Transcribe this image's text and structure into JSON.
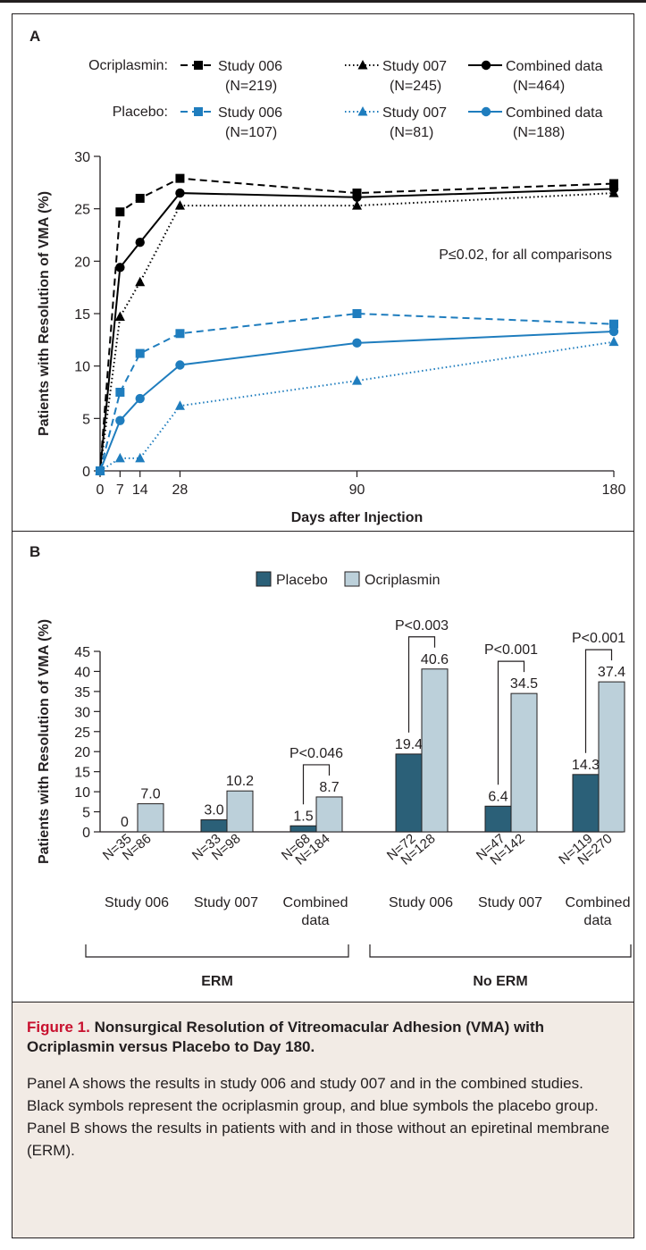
{
  "panel_a": {
    "label": "A",
    "legend_group_ocriplasmin": "Ocriplasmin:",
    "legend_group_placebo": "Placebo:",
    "stat_note": "P≤0.02, for all comparisons",
    "colors": {
      "ocriplasmin": "#000000",
      "placebo": "#1f7dbe"
    }
  },
  "panel_b": {
    "label": "B",
    "colors": {
      "placebo": "#2b6078",
      "ocriplasmin": "#bcd0da"
    }
  },
  "chart_data": [
    {
      "type": "line",
      "xlabel": "Days after Injection",
      "ylabel": "Patients with Resolution of VMA (%)",
      "x_ticks": [
        0,
        7,
        14,
        28,
        90,
        180
      ],
      "y_ticks": [
        0,
        5,
        10,
        15,
        20,
        25,
        30
      ],
      "xlim": [
        0,
        180
      ],
      "ylim": [
        0,
        30
      ],
      "series": [
        {
          "group": "ocriplasmin",
          "name": "Study 006",
          "n": "(N=219)",
          "line": "dashed",
          "marker": "square",
          "color": "#000000",
          "x": [
            0,
            7,
            14,
            28,
            90,
            180
          ],
          "y": [
            0,
            24.7,
            26.0,
            27.9,
            26.5,
            27.4
          ]
        },
        {
          "group": "ocriplasmin",
          "name": "Study 007",
          "n": "(N=245)",
          "line": "dotted",
          "marker": "triangle",
          "color": "#000000",
          "x": [
            0,
            7,
            14,
            28,
            90,
            180
          ],
          "y": [
            0,
            14.7,
            18.0,
            25.3,
            25.3,
            26.5
          ]
        },
        {
          "group": "ocriplasmin",
          "name": "Combined data",
          "n": "(N=464)",
          "line": "solid",
          "marker": "circle",
          "color": "#000000",
          "x": [
            0,
            7,
            14,
            28,
            90,
            180
          ],
          "y": [
            0,
            19.4,
            21.8,
            26.5,
            26.1,
            26.9
          ]
        },
        {
          "group": "placebo",
          "name": "Study 006",
          "n": "(N=107)",
          "line": "dashed",
          "marker": "square",
          "color": "#1f7dbe",
          "x": [
            0,
            7,
            14,
            28,
            90,
            180
          ],
          "y": [
            0,
            7.5,
            11.2,
            13.1,
            15.0,
            14.0
          ]
        },
        {
          "group": "placebo",
          "name": "Study 007",
          "n": "(N=81)",
          "line": "dotted",
          "marker": "triangle",
          "color": "#1f7dbe",
          "x": [
            0,
            7,
            14,
            28,
            90,
            180
          ],
          "y": [
            0,
            1.2,
            1.2,
            6.2,
            8.6,
            12.3
          ]
        },
        {
          "group": "placebo",
          "name": "Combined data",
          "n": "(N=188)",
          "line": "solid",
          "marker": "circle",
          "color": "#1f7dbe",
          "x": [
            0,
            7,
            14,
            28,
            90,
            180
          ],
          "y": [
            0,
            4.8,
            6.9,
            10.1,
            12.2,
            13.3
          ]
        }
      ]
    },
    {
      "type": "bar",
      "ylabel": "Patients with Resolution of VMA (%)",
      "ylim": [
        0,
        45
      ],
      "y_ticks": [
        0,
        5,
        10,
        15,
        20,
        25,
        30,
        35,
        40,
        45
      ],
      "legend": [
        "Placebo",
        "Ocriplasmin"
      ],
      "groups": [
        {
          "name": "ERM",
          "categories": [
            {
              "label": [
                "Study 006"
              ],
              "placebo": 0,
              "ocriplasmin": 7.0,
              "placebo_label": "0",
              "ocriplasmin_label": "7.0",
              "n_placebo": "N=35",
              "n_ocriplasmin": "N=86",
              "p": ""
            },
            {
              "label": [
                "Study 007"
              ],
              "placebo": 3.0,
              "ocriplasmin": 10.2,
              "placebo_label": "3.0",
              "ocriplasmin_label": "10.2",
              "n_placebo": "N=33",
              "n_ocriplasmin": "N=98",
              "p": ""
            },
            {
              "label": [
                "Combined",
                "data"
              ],
              "placebo": 1.5,
              "ocriplasmin": 8.7,
              "placebo_label": "1.5",
              "ocriplasmin_label": "8.7",
              "n_placebo": "N=68",
              "n_ocriplasmin": "N=184",
              "p": "P<0.046"
            }
          ]
        },
        {
          "name": "No ERM",
          "categories": [
            {
              "label": [
                "Study 006"
              ],
              "placebo": 19.4,
              "ocriplasmin": 40.6,
              "placebo_label": "19.4",
              "ocriplasmin_label": "40.6",
              "n_placebo": "N=72",
              "n_ocriplasmin": "N=128",
              "p": "P<0.003"
            },
            {
              "label": [
                "Study 007"
              ],
              "placebo": 6.4,
              "ocriplasmin": 34.5,
              "placebo_label": "6.4",
              "ocriplasmin_label": "34.5",
              "n_placebo": "N=47",
              "n_ocriplasmin": "N=142",
              "p": "P<0.001"
            },
            {
              "label": [
                "Combined",
                "data"
              ],
              "placebo": 14.3,
              "ocriplasmin": 37.4,
              "placebo_label": "14.3",
              "ocriplasmin_label": "37.4",
              "n_placebo": "N=119",
              "n_ocriplasmin": "N=270",
              "p": "P<0.001"
            }
          ]
        }
      ]
    }
  ],
  "caption": {
    "figure_label": "Figure 1.",
    "title": "Nonsurgical Resolution of Vitreomacular Adhesion (VMA) with Ocriplasmin versus Placebo to Day 180.",
    "body": "Panel A shows the results in study 006 and study 007 and in the combined studies. Black symbols represent the ocriplasmin group, and blue symbols the placebo group. Panel B shows the results in patients with and in those without an epiretinal membrane (ERM)."
  }
}
